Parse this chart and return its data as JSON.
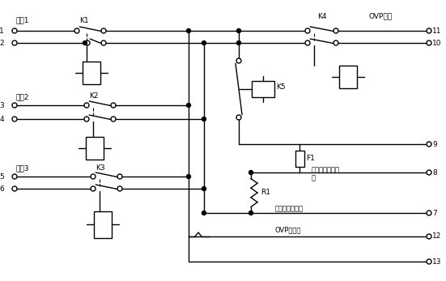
{
  "bg_color": "#ffffff",
  "line_color": "#000000",
  "text_color": "#000000",
  "fig_width": 5.51,
  "fig_height": 3.47,
  "labels": {
    "input1": "输入1",
    "input2": "输入2",
    "input3": "输入3",
    "K1": "K1",
    "K2": "K2",
    "K3": "K3",
    "K4": "K4",
    "K5": "K5",
    "F1": "F1",
    "R1": "R1",
    "OVP_in": "OVP输入",
    "fuse_test": "保险丝完好测试\n点",
    "short_test": "短路电流测试点",
    "OVP_test": "OVP测试点",
    "n1": "1",
    "n2": "2",
    "n3": "3",
    "n4": "4",
    "n5": "5",
    "n6": "6",
    "n7": "7",
    "n8": "8",
    "n9": "9",
    "n10": "10",
    "n11": "11",
    "n12": "12",
    "n13": "13"
  }
}
